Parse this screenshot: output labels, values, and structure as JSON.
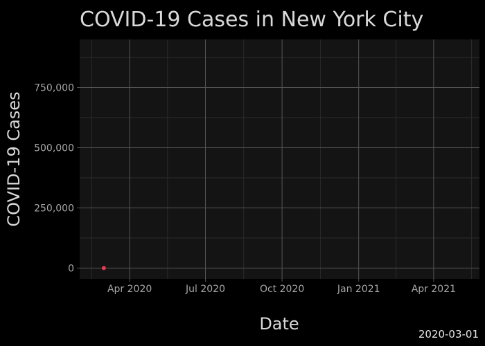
{
  "chart_data": {
    "type": "scatter",
    "title": "COVID-19 Cases in New York City",
    "xlabel": "Date",
    "ylabel": "COVID-19 Cases",
    "frame_label": "2020-03-01",
    "x_ticks": [
      {
        "date": "2020-04-01",
        "label": "Apr 2020"
      },
      {
        "date": "2020-07-01",
        "label": "Jul 2020"
      },
      {
        "date": "2020-10-01",
        "label": "Oct 2020"
      },
      {
        "date": "2021-01-01",
        "label": "Jan 2021"
      },
      {
        "date": "2021-04-01",
        "label": "Apr 2021"
      }
    ],
    "y_ticks": [
      {
        "value": 0,
        "label": "0"
      },
      {
        "value": 250000,
        "label": "250,000"
      },
      {
        "value": 500000,
        "label": "500,000"
      },
      {
        "value": 750000,
        "label": "750,000"
      }
    ],
    "xlim": [
      "2020-02-01",
      "2021-05-26"
    ],
    "ylim": [
      -45000,
      950000
    ],
    "grid": true,
    "series": [
      {
        "color": "#e8384f",
        "points": [
          {
            "x": "2020-03-01",
            "y": 1
          }
        ]
      }
    ],
    "colors": {
      "background": "#000000",
      "panel": "#141414",
      "grid_major": "#555555",
      "grid_minor": "#2b2b2b",
      "text": "#d9d9d9",
      "tick_text": "#a6a6a6"
    }
  }
}
